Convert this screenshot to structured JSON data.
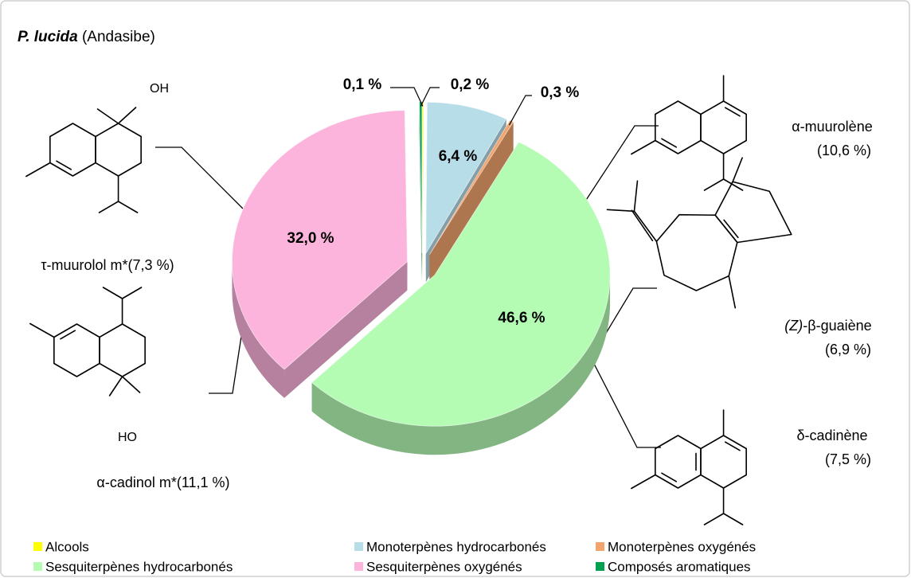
{
  "chart_data": {
    "type": "pie",
    "title": "P. lucida",
    "subtitle": "(Andasibe)",
    "categories": [
      "Alcools",
      "Monoterpènes hydrocarbonés",
      "Monoterpènes oxygénés",
      "Sesquiterpènes hydrocarbonés",
      "Sesquiterpènes oxygénés",
      "Composés aromatiques"
    ],
    "values": [
      0.1,
      6.4,
      0.3,
      46.6,
      32.0,
      0.2
    ],
    "value_labels": [
      "0,1 %",
      "6,4 %",
      "0,3 %",
      "46,6 %",
      "32,0 %",
      "0,2 %"
    ],
    "colors": [
      "#ffff00",
      "#b7dde8",
      "#f2a46e",
      "#b4fbb4",
      "#fcb3dc",
      "#00a050"
    ],
    "annotations": [
      {
        "prefix": "",
        "text": "τ-muurolol m*(7,3 %)",
        "value": ""
      },
      {
        "prefix": "",
        "text": "α-cadinol m*(11,1 %)",
        "value": ""
      },
      {
        "prefix": "",
        "text": "α-muurolène",
        "value": "(10,6 %)"
      },
      {
        "prefix": "(Z)",
        "text": "-β-guaiène",
        "value": "(6,9 %)"
      },
      {
        "prefix": "",
        "text": "δ-cadinène",
        "value": "(7,5 %)"
      }
    ],
    "atom_labels": [
      "OH",
      "HO"
    ],
    "legend": "bottom"
  }
}
